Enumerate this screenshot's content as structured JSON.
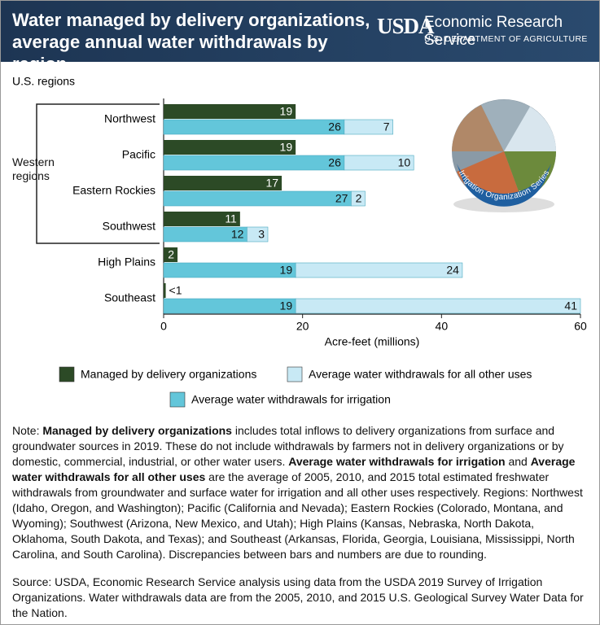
{
  "header": {
    "logo": "USDA",
    "agency": "Economic Research Service",
    "department": "U.S. DEPARTMENT OF AGRICULTURE",
    "badge": "Irrigation Organization Series"
  },
  "chart_data": {
    "type": "bar",
    "orientation": "horizontal",
    "title": "Water managed by delivery organizations, average annual water withdrawals by region",
    "y_label": "U.S. regions",
    "x_label": "Acre-feet (millions)",
    "group_label": "Western regions",
    "categories": [
      "Northwest",
      "Pacific",
      "Eastern Rockies",
      "Southwest",
      "High Plains",
      "Southeast"
    ],
    "series": [
      {
        "name": "Managed by delivery organizations",
        "color": "#2c4a26",
        "stack": "managed",
        "values": [
          19,
          19,
          17,
          11,
          2,
          0.3
        ],
        "value_labels": [
          null,
          null,
          null,
          null,
          null,
          "<1"
        ]
      },
      {
        "name": "Average water withdrawals for irrigation",
        "color": "#63c6da",
        "stack": "withdrawals",
        "values": [
          26,
          26,
          27,
          12,
          19,
          19
        ]
      },
      {
        "name": "Average water withdrawals for all other uses",
        "color": "#c8e9f5",
        "stack": "withdrawals",
        "values": [
          7,
          10,
          2,
          3,
          24,
          41
        ]
      }
    ],
    "xlim": [
      0,
      60
    ],
    "xticks": [
      0,
      20,
      40,
      60
    ]
  },
  "note": {
    "segments": [
      {
        "text": "Note: ",
        "bold": false
      },
      {
        "text": "Managed by delivery organizations",
        "bold": true
      },
      {
        "text": " includes total inflows to delivery organizations from surface and groundwater sources in 2019. These do not include withdrawals by farmers not in delivery organizations or by domestic, commercial, industrial, or other water users. ",
        "bold": false
      },
      {
        "text": "Average water withdrawals for irrigation",
        "bold": true
      },
      {
        "text": " and ",
        "bold": false
      },
      {
        "text": "Average water withdrawals for all other uses",
        "bold": true
      },
      {
        "text": " are the average of 2005, 2010, and 2015 total estimated freshwater withdrawals from groundwater and surface water for irrigation and all other uses respectively. Regions: Northwest (Idaho, Oregon, and Washington); Pacific (California and Nevada); Eastern Rockies (Colorado, Montana, and Wyoming); Southwest (Arizona, New Mexico, and Utah); High Plains (Kansas, Nebraska, North Dakota, Oklahoma, South Dakota, and Texas); and Southeast (Arkansas, Florida, Georgia, Louisiana, Mississippi, North Carolina, and South Carolina). Discrepancies between bars and numbers are due to rounding.",
        "bold": false
      }
    ]
  },
  "source": "Source: USDA, Economic Research Service analysis using data from the USDA 2019 Survey of Irrigation Organizations. Water withdrawals data are from the 2005, 2010, and 2015 U.S. Geological Survey Water Data for the Nation."
}
